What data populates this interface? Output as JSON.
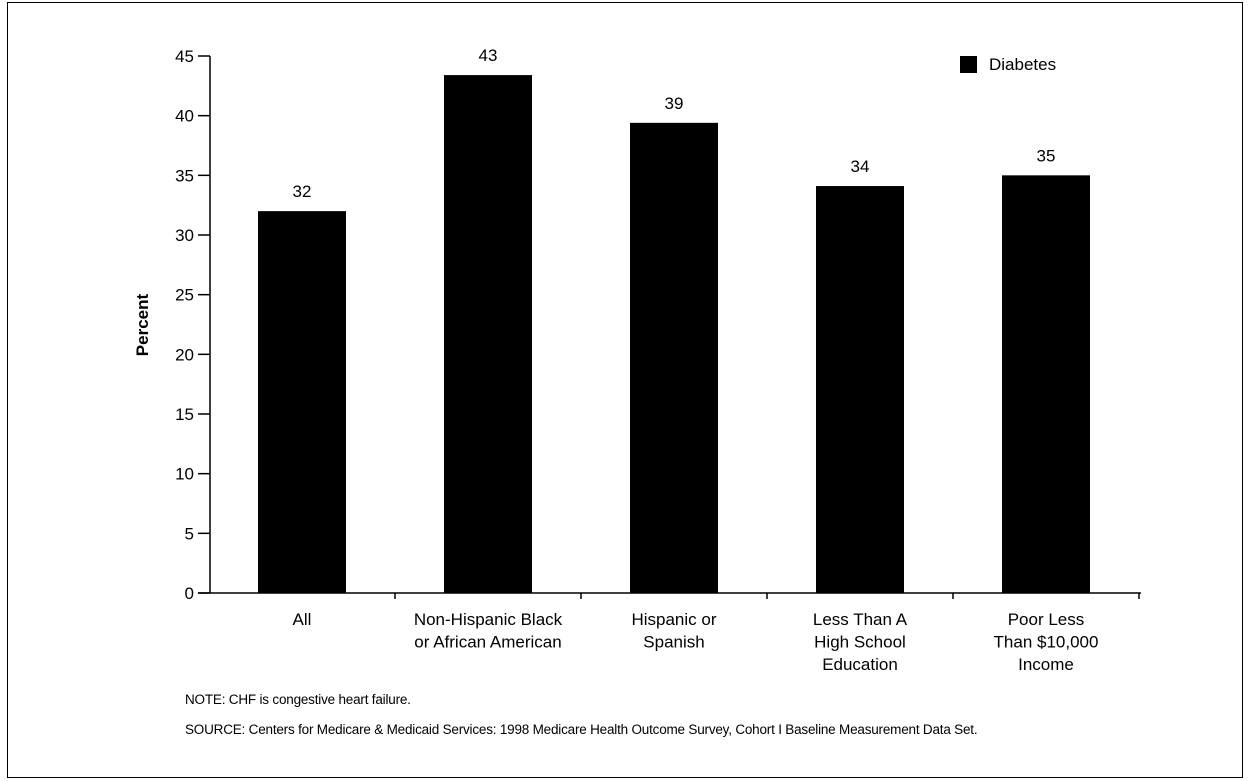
{
  "chart_data": {
    "type": "bar",
    "title": "",
    "xlabel": "",
    "ylabel": "Percent",
    "ylim": [
      0,
      45
    ],
    "yticks": [
      0,
      5,
      10,
      15,
      20,
      25,
      30,
      35,
      40,
      45
    ],
    "categories": [
      [
        "All"
      ],
      [
        "Non-Hispanic Black",
        "or African American"
      ],
      [
        "Hispanic or",
        "Spanish"
      ],
      [
        "Less Than A",
        "High School",
        "Education"
      ],
      [
        "Poor Less",
        "Than $10,000",
        "Income"
      ]
    ],
    "series": [
      {
        "name": "Diabetes",
        "values": [
          32,
          43.4,
          39.4,
          34.1,
          35
        ],
        "labels": [
          "32",
          "43",
          "39",
          "34",
          "35"
        ],
        "color": "#000000"
      }
    ],
    "legend": "top-right",
    "grid": false
  },
  "notes": {
    "note": "NOTE: CHF is congestive heart failure.",
    "source": "SOURCE: Centers for Medicare & Medicaid Services: 1998 Medicare Health Outcome Survey, Cohort I Baseline Measurement Data Set."
  }
}
